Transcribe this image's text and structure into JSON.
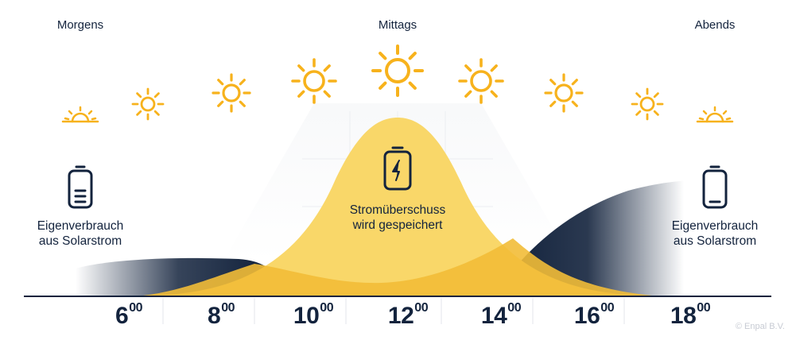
{
  "period_labels": {
    "morning": "Morgens",
    "noon": "Mittags",
    "evening": "Abends"
  },
  "left_description": {
    "line1": "Eigenverbrauch",
    "line2": "aus Solarstrom"
  },
  "center_description": {
    "line1": "Stromüberschuss",
    "line2": "wird gespeichert"
  },
  "right_description": {
    "line1": "Eigenverbrauch",
    "line2": "aus Solarstrom"
  },
  "time_labels": [
    {
      "hour": "6",
      "minutes": "00"
    },
    {
      "hour": "8",
      "minutes": "00"
    },
    {
      "hour": "10",
      "minutes": "00"
    },
    {
      "hour": "12",
      "minutes": "00"
    },
    {
      "hour": "14",
      "minutes": "00"
    },
    {
      "hour": "16",
      "minutes": "00"
    },
    {
      "hour": "18",
      "minutes": "00"
    }
  ],
  "copyright": "© Enpal B.V.",
  "colors": {
    "sun": "#f7b21c",
    "production_curve": "#f9d769",
    "consumption_curve": "#f2bd37",
    "navy": "#13233d",
    "baseline": "#13233d"
  },
  "icons": {
    "suns": [
      "sunrise-icon",
      "sun-icon",
      "sun-icon",
      "sun-icon",
      "sun-icon",
      "sun-icon",
      "sun-icon",
      "sun-icon",
      "sunset-icon"
    ],
    "left": "battery-icon",
    "center": "battery-charging-icon",
    "right": "battery-icon"
  }
}
